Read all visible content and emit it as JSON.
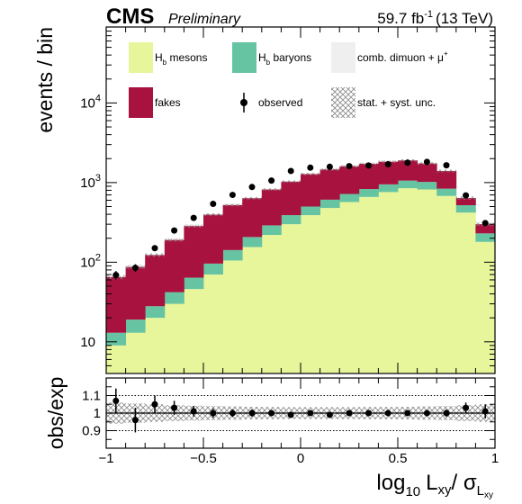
{
  "header": {
    "experiment": "CMS",
    "status": "Preliminary",
    "lumi_value": "59.7 fb",
    "lumi_exp": "-1",
    "lumi_energy": "(13 TeV)"
  },
  "colors": {
    "hb_mesons": "#e7f59b",
    "hb_baryons": "#66c4a3",
    "comb_dimuon": "#efefef",
    "fakes": "#a8123f",
    "observed": "#000000",
    "uncertainty": "#888888"
  },
  "chart_data": [
    {
      "type": "bar",
      "stacked": true,
      "xlim": [
        -1,
        1
      ],
      "ylim": [
        4,
        90000
      ],
      "y_scale": "log",
      "ylabel": "events / bin",
      "x_ticks": [
        -1,
        -0.5,
        0,
        0.5,
        1
      ],
      "x_tick_labels": [
        "−1",
        "−0.5",
        "0",
        "0.5",
        "1"
      ],
      "y_ticks": [
        10,
        100,
        1000,
        10000
      ],
      "y_tick_labels": [
        {
          "base": "10",
          "exp": ""
        },
        {
          "base": "10",
          "exp": "2"
        },
        {
          "base": "10",
          "exp": "3"
        },
        {
          "base": "10",
          "exp": "4"
        }
      ],
      "bin_edges": [
        -1,
        -0.9,
        -0.8,
        -0.7,
        -0.6,
        -0.5,
        -0.4,
        -0.3,
        -0.2,
        -0.1,
        0,
        0.1,
        0.2,
        0.3,
        0.4,
        0.5,
        0.6,
        0.7,
        0.8,
        0.9,
        1
      ],
      "series": [
        {
          "name": "H_b mesons",
          "color_key": "hb_mesons",
          "values": [
            9,
            13,
            20,
            30,
            46,
            70,
            105,
            155,
            220,
            300,
            390,
            480,
            570,
            660,
            760,
            850,
            820,
            680,
            420,
            180
          ]
        },
        {
          "name": "H_b baryons",
          "color_key": "hb_baryons",
          "values": [
            4,
            6,
            8,
            12,
            18,
            26,
            37,
            52,
            70,
            90,
            110,
            130,
            150,
            170,
            190,
            210,
            200,
            160,
            100,
            50
          ]
        },
        {
          "name": "comb. dimuon + μ⁺",
          "color_key": "comb_dimuon",
          "values": [
            0,
            0,
            0,
            0,
            0,
            0,
            0,
            0,
            0,
            0,
            0,
            0,
            0,
            0,
            0,
            0,
            0,
            0,
            0,
            0
          ]
        },
        {
          "name": "fakes",
          "color_key": "fakes",
          "values": [
            52,
            68,
            95,
            148,
            220,
            300,
            380,
            430,
            530,
            640,
            780,
            850,
            880,
            890,
            880,
            840,
            720,
            560,
            120,
            70
          ]
        }
      ],
      "observed": [
        69,
        85,
        150,
        250,
        360,
        540,
        700,
        880,
        1060,
        1400,
        1540,
        1580,
        1610,
        1640,
        1700,
        1780,
        1820,
        1650,
        690,
        310
      ],
      "legend": [
        {
          "label": "H_b mesons",
          "label_base": "H",
          "label_sub": "b",
          "label_rest": " mesons",
          "swatch": "fill",
          "color_key": "hb_mesons"
        },
        {
          "label": "H_b baryons",
          "label_base": "H",
          "label_sub": "b",
          "label_rest": " baryons",
          "swatch": "fill",
          "color_key": "hb_baryons"
        },
        {
          "label": "comb. dimuon + μ⁺",
          "label_base": "comb. dimuon + μ",
          "label_sub": "",
          "label_sup": "+",
          "label_rest": "",
          "swatch": "fill",
          "color_key": "comb_dimuon"
        },
        {
          "label": "fakes",
          "label_base": "fakes",
          "label_sub": "",
          "label_rest": "",
          "swatch": "fill",
          "color_key": "fakes"
        },
        {
          "label": "observed",
          "label_base": "observed",
          "label_sub": "",
          "label_rest": "",
          "swatch": "marker",
          "color_key": "observed"
        },
        {
          "label": "stat. + syst. unc.",
          "label_base": "stat. + syst. unc.",
          "label_sub": "",
          "label_rest": "",
          "swatch": "hatch",
          "color_key": "uncertainty"
        }
      ]
    },
    {
      "type": "scatter",
      "xlim": [
        -1,
        1
      ],
      "ylim": [
        0.8,
        1.2
      ],
      "ylabel": "obs/exp",
      "xlabel": "log10 Lxy/ σLxy",
      "xlabel_parts": {
        "log": "log",
        "log_sub": "10",
        "L": "L",
        "L_sub": "xy",
        "slash": "/ ",
        "sigma": "σ",
        "sigma_sub": "L",
        "sigma_subsub": "xy"
      },
      "x_ticks": [
        -1,
        -0.5,
        0,
        0.5,
        1
      ],
      "x_tick_labels": [
        "−1",
        "−0.5",
        "0",
        "0.5",
        "1"
      ],
      "y_ticks": [
        0.9,
        1.0,
        1.1
      ],
      "y_tick_labels": [
        "0.9",
        "1",
        "1.1"
      ],
      "x": [
        -0.95,
        -0.85,
        -0.75,
        -0.65,
        -0.55,
        -0.45,
        -0.35,
        -0.25,
        -0.15,
        -0.05,
        0.05,
        0.15,
        0.25,
        0.35,
        0.45,
        0.55,
        0.65,
        0.75,
        0.85,
        0.95
      ],
      "y": [
        1.07,
        0.96,
        1.05,
        1.03,
        1.01,
        1.0,
        1.0,
        1.0,
        1.0,
        0.99,
        1.0,
        0.99,
        1.0,
        1.0,
        1.0,
        1.0,
        1.0,
        1.0,
        1.03,
        1.01
      ],
      "yerr": [
        0.07,
        0.07,
        0.05,
        0.04,
        0.03,
        0.025,
        0.022,
        0.02,
        0.018,
        0.016,
        0.015,
        0.015,
        0.015,
        0.015,
        0.015,
        0.015,
        0.016,
        0.02,
        0.03,
        0.04
      ],
      "band": [
        0.06,
        0.055,
        0.05,
        0.045,
        0.042,
        0.04,
        0.038,
        0.036,
        0.035,
        0.034,
        0.034,
        0.034,
        0.034,
        0.035,
        0.035,
        0.036,
        0.038,
        0.04,
        0.045,
        0.05
      ],
      "ref_lines": [
        0.9,
        1.0,
        1.1
      ]
    }
  ]
}
